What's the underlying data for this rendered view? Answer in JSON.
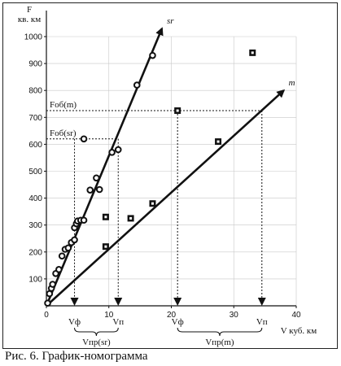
{
  "chart_data": {
    "type": "scatter",
    "caption": "Рис. 6. График-номограмма",
    "ylabel_letter": "F",
    "ylabel_unit": "кв. км",
    "xlabel": "V куб. км",
    "xlim": [
      0,
      40
    ],
    "ylim": [
      0,
      1000
    ],
    "x_ticks": [
      0,
      10,
      20,
      30,
      40
    ],
    "y_ticks": [
      100,
      200,
      300,
      400,
      500,
      600,
      700,
      800,
      900,
      1000
    ],
    "series": [
      {
        "name": "sr",
        "marker": "circle",
        "points": [
          [
            0.2,
            10
          ],
          [
            0.5,
            45
          ],
          [
            0.8,
            65
          ],
          [
            1.0,
            80
          ],
          [
            1.5,
            120
          ],
          [
            2.0,
            135
          ],
          [
            2.5,
            185
          ],
          [
            3.0,
            210
          ],
          [
            3.5,
            215
          ],
          [
            4.0,
            235
          ],
          [
            4.5,
            245
          ],
          [
            4.5,
            290
          ],
          [
            4.8,
            305
          ],
          [
            5.0,
            315
          ],
          [
            5.5,
            318
          ],
          [
            6.0,
            318
          ],
          [
            6.0,
            620
          ],
          [
            7.0,
            430
          ],
          [
            8.0,
            475
          ],
          [
            8.5,
            432
          ],
          [
            10.5,
            570
          ],
          [
            11.5,
            580
          ],
          [
            14.5,
            820
          ],
          [
            17.0,
            930
          ]
        ],
        "line_end": [
          18.5,
          1030
        ]
      },
      {
        "name": "m",
        "marker": "square",
        "points": [
          [
            9.5,
            330
          ],
          [
            9.5,
            220
          ],
          [
            13.5,
            325
          ],
          [
            17.0,
            380
          ],
          [
            21.0,
            725
          ],
          [
            27.5,
            610
          ],
          [
            33.0,
            940
          ]
        ],
        "line_end": [
          38,
          800
        ]
      }
    ],
    "reference_lines": {
      "fob_m": {
        "label": "Fоб(m)",
        "y": 725,
        "x_end": 34.5
      },
      "fob_sr": {
        "label": "Fоб(sr)",
        "y": 620,
        "x_end": 11.5
      }
    },
    "markers": [
      {
        "label": "Vф",
        "x": 4.5
      },
      {
        "label": "Vп",
        "x": 11.5
      },
      {
        "label": "Vф",
        "x": 21.0
      },
      {
        "label": "Vп",
        "x": 34.5
      }
    ],
    "brackets": [
      {
        "label": "Vпр(sr)",
        "from": 4.5,
        "to": 11.5
      },
      {
        "label": "Vпр(m)",
        "from": 21.0,
        "to": 34.5
      }
    ]
  }
}
